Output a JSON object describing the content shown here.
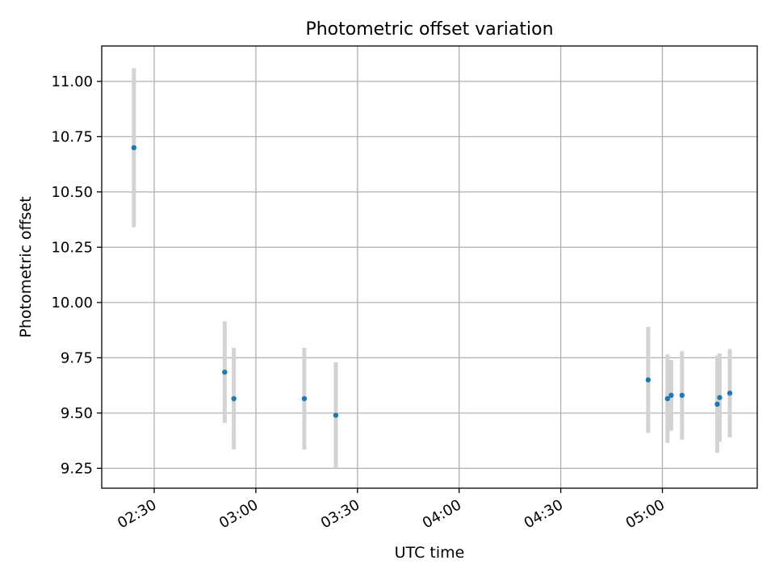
{
  "chart_data": {
    "type": "scatter",
    "title": "Photometric offset variation",
    "xlabel": "UTC time",
    "ylabel": "Photometric offset",
    "xlim_minutes": [
      134.5,
      328.0
    ],
    "ylim": [
      9.16,
      11.16
    ],
    "x_ticks": [
      {
        "minutes": 150,
        "label": "02:30"
      },
      {
        "minutes": 180,
        "label": "03:00"
      },
      {
        "minutes": 210,
        "label": "03:30"
      },
      {
        "minutes": 240,
        "label": "04:00"
      },
      {
        "minutes": 270,
        "label": "04:30"
      },
      {
        "minutes": 300,
        "label": "05:00"
      }
    ],
    "y_ticks": [
      {
        "value": 9.25,
        "label": "9.25"
      },
      {
        "value": 9.5,
        "label": "9.50"
      },
      {
        "value": 9.75,
        "label": "9.75"
      },
      {
        "value": 10.0,
        "label": "10.00"
      },
      {
        "value": 10.25,
        "label": "10.25"
      },
      {
        "value": 10.5,
        "label": "10.50"
      },
      {
        "value": 10.75,
        "label": "10.75"
      },
      {
        "value": 11.0,
        "label": "11.00"
      }
    ],
    "grid": true,
    "series": [
      {
        "name": "offset",
        "color": "#1f77b4",
        "errorbar_color": "#d3d3d3",
        "points": [
          {
            "time": "02:24",
            "minutes": 144.0,
            "y": 10.7,
            "err": 0.36
          },
          {
            "time": "02:51",
            "minutes": 170.8,
            "y": 9.685,
            "err": 0.23
          },
          {
            "time": "02:54",
            "minutes": 173.5,
            "y": 9.565,
            "err": 0.23
          },
          {
            "time": "03:14",
            "minutes": 194.3,
            "y": 9.565,
            "err": 0.23
          },
          {
            "time": "03:23",
            "minutes": 203.6,
            "y": 9.49,
            "err": 0.24
          },
          {
            "time": "04:56",
            "minutes": 295.8,
            "y": 9.65,
            "err": 0.24
          },
          {
            "time": "05:01",
            "minutes": 301.5,
            "y": 9.565,
            "err": 0.2
          },
          {
            "time": "05:02",
            "minutes": 302.6,
            "y": 9.58,
            "err": 0.16
          },
          {
            "time": "05:06",
            "minutes": 305.8,
            "y": 9.58,
            "err": 0.2
          },
          {
            "time": "05:16",
            "minutes": 316.2,
            "y": 9.54,
            "err": 0.22
          },
          {
            "time": "05:17",
            "minutes": 316.9,
            "y": 9.57,
            "err": 0.2
          },
          {
            "time": "05:19",
            "minutes": 319.9,
            "y": 9.59,
            "err": 0.2
          }
        ]
      }
    ]
  }
}
